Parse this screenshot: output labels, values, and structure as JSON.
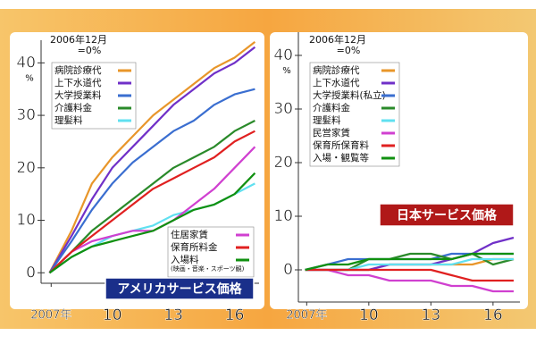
{
  "chart_data": [
    {
      "type": "line",
      "title": "アメリカサービス価格",
      "title_color": "#1a2f8a",
      "note_lines": [
        "2006年12月",
        "=0%"
      ],
      "y_unit": "%",
      "x": [
        2006.92,
        2008,
        2009,
        2010,
        2011,
        2012,
        2013,
        2014,
        2015,
        2016,
        2017
      ],
      "xlim": [
        2006.9,
        2017.2
      ],
      "xticks": [
        {
          "value": 2007,
          "label": "2007年"
        },
        {
          "value": 2010,
          "label": "10"
        },
        {
          "value": 2013,
          "label": "13"
        },
        {
          "value": 2016,
          "label": "16"
        }
      ],
      "ylim": [
        -2,
        45
      ],
      "yticks": [
        0,
        10,
        20,
        30,
        40
      ],
      "series": [
        {
          "name": "病院診療代",
          "color": "#e8962a",
          "legend": "upper-left",
          "values": [
            0,
            8,
            17,
            22,
            26,
            30,
            33,
            36,
            39,
            41,
            44
          ]
        },
        {
          "name": "上下水道代",
          "color": "#7030c8",
          "legend": "upper-left",
          "values": [
            0,
            7,
            14,
            20,
            24,
            28,
            32,
            35,
            38,
            40,
            43
          ]
        },
        {
          "name": "大学授業料",
          "color": "#3a6ed0",
          "legend": "upper-left",
          "values": [
            0,
            6,
            12,
            17,
            21,
            24,
            27,
            29,
            32,
            34,
            35
          ]
        },
        {
          "name": "介護料金",
          "color": "#2a8a2a",
          "legend": "upper-left",
          "values": [
            0,
            4,
            8,
            11,
            14,
            17,
            20,
            22,
            24,
            27,
            29
          ]
        },
        {
          "name": "理髪料",
          "color": "#60e0f0",
          "legend": "upper-left",
          "values": [
            0,
            3,
            5,
            7,
            8,
            9,
            11,
            12,
            13,
            15,
            17
          ]
        },
        {
          "name": "住居家賃",
          "color": "#d040d0",
          "legend": "lower-right",
          "values": [
            0,
            4,
            6,
            7,
            8,
            8,
            10,
            13,
            16,
            20,
            24
          ]
        },
        {
          "name": "保育所料金",
          "color": "#e02020",
          "legend": "lower-right",
          "values": [
            0,
            4,
            7,
            10,
            13,
            16,
            18,
            20,
            22,
            25,
            27
          ]
        },
        {
          "name": "入場料",
          "sublabel": "(映画・音楽・スポーツ観)",
          "color": "#109010",
          "legend": "lower-right",
          "values": [
            0,
            3,
            5,
            6,
            7,
            8,
            10,
            12,
            13,
            15,
            19
          ]
        }
      ]
    },
    {
      "type": "line",
      "title": "日本サービス価格",
      "title_color": "#b01818",
      "note_lines": [
        "2006年12月",
        "=0%"
      ],
      "y_unit": "%",
      "x": [
        2006.92,
        2008,
        2009,
        2010,
        2011,
        2012,
        2013,
        2014,
        2015,
        2016,
        2017
      ],
      "xlim": [
        2006.9,
        2017.3
      ],
      "xticks": [
        {
          "value": 2007,
          "label": "2007年"
        },
        {
          "value": 2010,
          "label": "10"
        },
        {
          "value": 2013,
          "label": "13"
        },
        {
          "value": 2016,
          "label": "16"
        }
      ],
      "ylim": [
        -6,
        45
      ],
      "yticks": [
        0,
        10,
        20,
        30,
        40
      ],
      "series": [
        {
          "name": "病院診療代",
          "color": "#e8962a",
          "legend": "upper-left",
          "values": [
            0,
            0,
            0,
            0,
            1,
            1,
            1,
            1,
            1,
            2,
            2
          ]
        },
        {
          "name": "上下水道代",
          "color": "#7030c8",
          "legend": "upper-left",
          "values": [
            0,
            0,
            0,
            0,
            1,
            1,
            1,
            2,
            3,
            5,
            6
          ]
        },
        {
          "name": "大学授業料(私立)",
          "color": "#3a6ed0",
          "legend": "upper-left",
          "values": [
            0,
            1,
            2,
            2,
            2,
            2,
            2,
            3,
            3,
            3,
            3
          ]
        },
        {
          "name": "介護料金",
          "color": "#2a8a2a",
          "legend": "upper-left",
          "values": [
            0,
            0,
            0,
            2,
            2,
            3,
            3,
            2,
            3,
            1,
            2
          ]
        },
        {
          "name": "理髪料",
          "color": "#60e0f0",
          "legend": "upper-left",
          "values": [
            0,
            0,
            0,
            1,
            1,
            1,
            1,
            1,
            2,
            2,
            2
          ]
        },
        {
          "name": "民営家賃",
          "color": "#d040d0",
          "legend": "upper-left",
          "values": [
            0,
            0,
            -1,
            -1,
            -2,
            -2,
            -2,
            -3,
            -3,
            -4,
            -4
          ]
        },
        {
          "name": "保育所保育料",
          "color": "#e02020",
          "legend": "upper-left",
          "values": [
            0,
            0,
            0,
            0,
            0,
            0,
            0,
            -1,
            -2,
            -2,
            -2
          ]
        },
        {
          "name": "入場・観覧等",
          "color": "#109010",
          "legend": "upper-left",
          "values": [
            0,
            1,
            1,
            2,
            2,
            2,
            2,
            2,
            3,
            3,
            3
          ]
        }
      ]
    }
  ]
}
